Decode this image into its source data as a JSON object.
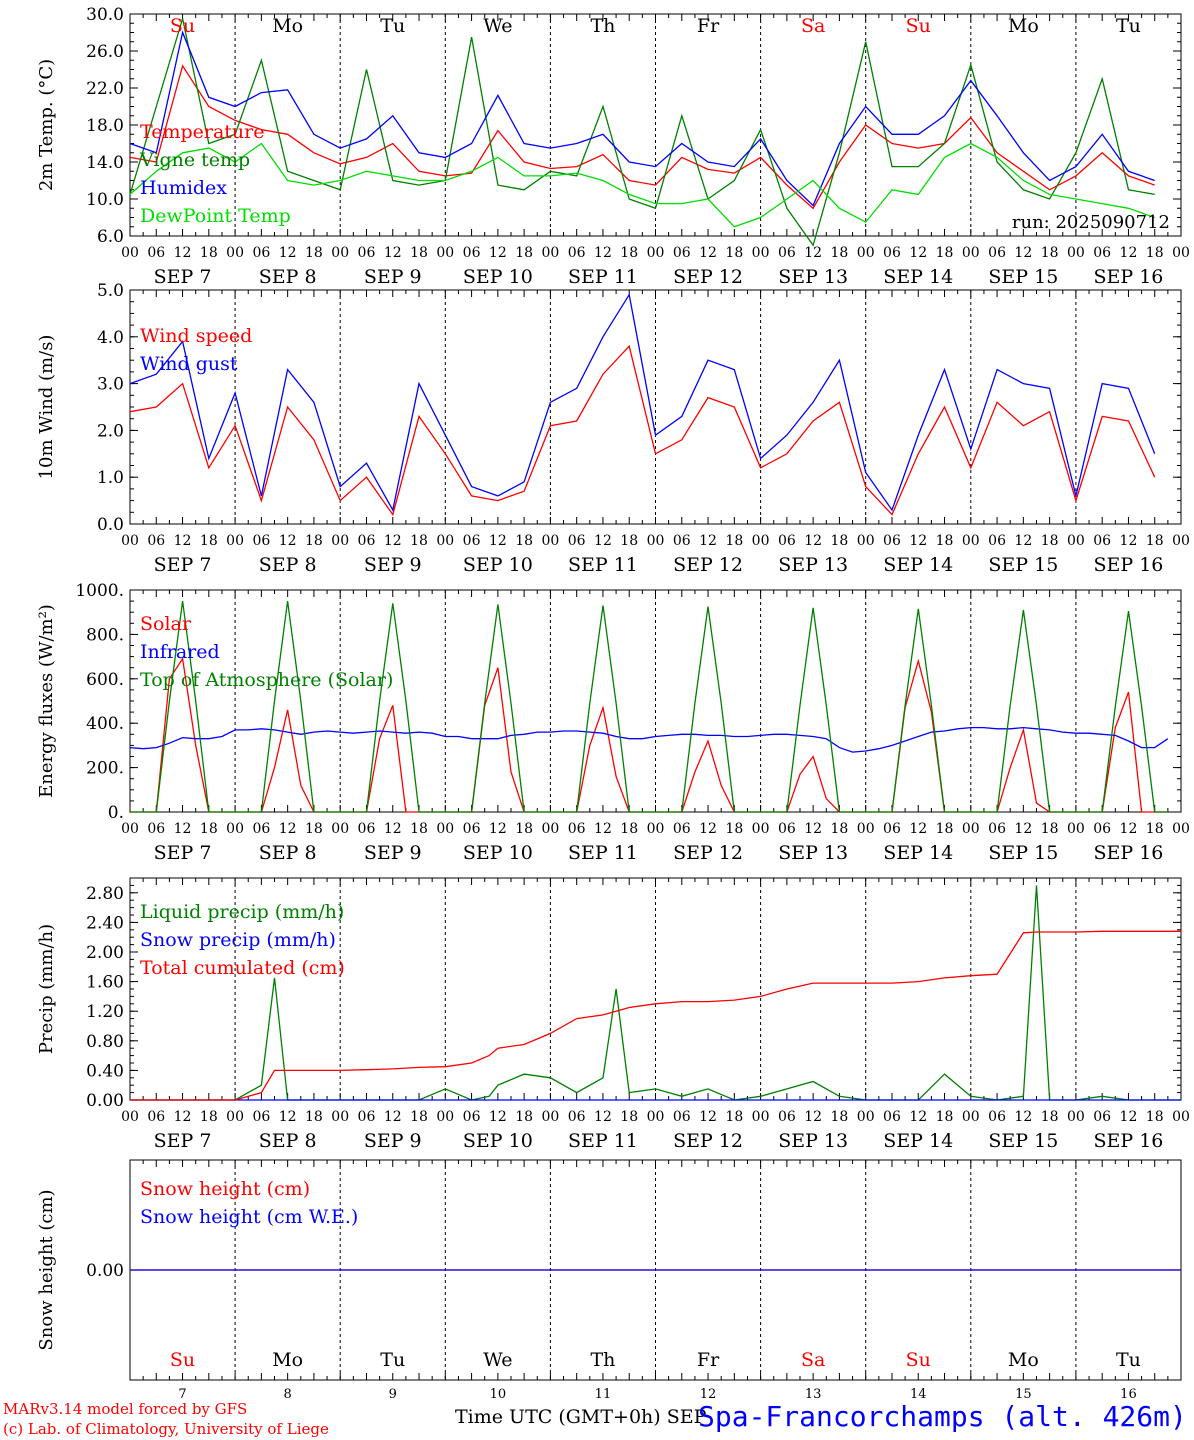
{
  "days": [
    {
      "abbr": "Su",
      "num": "7",
      "date": "SEP  7",
      "weekend": true
    },
    {
      "abbr": "Mo",
      "num": "8",
      "date": "SEP  8",
      "weekend": false
    },
    {
      "abbr": "Tu",
      "num": "9",
      "date": "SEP  9",
      "weekend": false
    },
    {
      "abbr": "We",
      "num": "10",
      "date": "SEP 10",
      "weekend": false
    },
    {
      "abbr": "Th",
      "num": "11",
      "date": "SEP 11",
      "weekend": false
    },
    {
      "abbr": "Fr",
      "num": "12",
      "date": "SEP 12",
      "weekend": false
    },
    {
      "abbr": "Sa",
      "num": "13",
      "date": "SEP 13",
      "weekend": true
    },
    {
      "abbr": "Su",
      "num": "14",
      "date": "SEP 14",
      "weekend": true
    },
    {
      "abbr": "Mo",
      "num": "15",
      "date": "SEP 15",
      "weekend": false
    },
    {
      "abbr": "Tu",
      "num": "16",
      "date": "SEP 16",
      "weekend": false
    }
  ],
  "hour_ticks": [
    "00",
    "06",
    "12",
    "18"
  ],
  "footer": {
    "credit1": "MARv3.14 model forced by GFS",
    "credit2": "(c) Lab. of Climatology, University of Liege",
    "xlabel": "Time UTC (GMT+0h) SEP",
    "station": "Spa-Francorchamps (alt. 426m)"
  },
  "colors": {
    "red": "#ff0000",
    "blue": "#0000ff",
    "green": "#008000",
    "lightgreen": "#00dd00"
  },
  "chart_data": [
    {
      "type": "line",
      "ylabel": "2m Temp. (°C)",
      "ylim": [
        6,
        30
      ],
      "yticks": [
        "6.0",
        "10.0",
        "14.0",
        "18.0",
        "22.0",
        "26.0",
        "30.0"
      ],
      "note": "run: 2025090712",
      "x": [
        0,
        6,
        12,
        18,
        24,
        30,
        36,
        42,
        48,
        54,
        60,
        66,
        72,
        78,
        84,
        90,
        96,
        102,
        108,
        114,
        120,
        126,
        132,
        138,
        144,
        150,
        156,
        162,
        168,
        174,
        180,
        186,
        192,
        198,
        204,
        210,
        216,
        222,
        228,
        234
      ],
      "series": [
        {
          "name": "Temperature",
          "color": "red",
          "values": [
            14.5,
            14.0,
            24.4,
            20.0,
            18.5,
            17.5,
            17.0,
            15.0,
            13.8,
            14.5,
            16.0,
            13.0,
            12.5,
            12.8,
            17.4,
            14.0,
            13.3,
            13.5,
            14.8,
            12.0,
            11.5,
            14.5,
            13.2,
            12.8,
            14.5,
            11.5,
            9.0,
            14.0,
            18.0,
            16.0,
            15.5,
            16.0,
            18.8,
            15.0,
            13.0,
            11.0,
            12.5,
            15.0,
            12.5,
            11.5
          ]
        },
        {
          "name": "Vigne temp",
          "color": "green",
          "values": [
            10.5,
            20.0,
            29.5,
            16.0,
            17.0,
            25.0,
            13.0,
            12.0,
            11.0,
            24.0,
            12.0,
            11.5,
            12.0,
            27.5,
            11.5,
            11.0,
            13.0,
            12.5,
            20.0,
            10.0,
            9.0,
            19.0,
            10.0,
            12.0,
            17.5,
            9.0,
            5.0,
            15.0,
            27.0,
            13.5,
            13.5,
            16.0,
            24.5,
            14.0,
            11.0,
            10.0,
            15.0,
            23.0,
            11.0,
            10.5
          ]
        },
        {
          "name": "Humidex",
          "color": "blue",
          "values": [
            16.0,
            15.0,
            28.0,
            21.0,
            20.0,
            21.5,
            21.8,
            17.0,
            15.5,
            16.5,
            19.0,
            15.0,
            14.5,
            16.0,
            21.2,
            16.0,
            15.5,
            16.0,
            17.0,
            14.0,
            13.5,
            16.0,
            14.0,
            13.5,
            16.5,
            12.0,
            9.3,
            16.0,
            20.0,
            17.0,
            17.0,
            19.0,
            22.8,
            19.0,
            15.0,
            12.0,
            13.5,
            17.0,
            13.0,
            12.0
          ]
        },
        {
          "name": "DewPoint Temp",
          "color": "lightgreen",
          "values": [
            10.5,
            13.0,
            15.0,
            15.5,
            14.0,
            16.0,
            12.0,
            11.5,
            12.0,
            13.0,
            12.5,
            12.0,
            12.0,
            13.0,
            14.5,
            12.5,
            12.5,
            12.8,
            12.0,
            10.5,
            9.5,
            9.5,
            10.0,
            7.0,
            8.0,
            10.0,
            12.0,
            9.0,
            7.5,
            11.0,
            10.5,
            14.5,
            16.0,
            14.5,
            12.0,
            10.5,
            10.0,
            9.5,
            9.0,
            8.0
          ]
        }
      ]
    },
    {
      "type": "line",
      "ylabel": "10m Wind (m/s)",
      "ylim": [
        0,
        5
      ],
      "yticks": [
        "0.0",
        "1.0",
        "2.0",
        "3.0",
        "4.0",
        "5.0"
      ],
      "x": [
        0,
        6,
        12,
        18,
        24,
        30,
        36,
        42,
        48,
        54,
        60,
        66,
        72,
        78,
        84,
        90,
        96,
        102,
        108,
        114,
        120,
        126,
        132,
        138,
        144,
        150,
        156,
        162,
        168,
        174,
        180,
        186,
        192,
        198,
        204,
        210,
        216,
        222,
        228,
        234
      ],
      "series": [
        {
          "name": "Wind speed",
          "color": "red",
          "values": [
            2.4,
            2.5,
            3.0,
            1.2,
            2.1,
            0.5,
            2.5,
            1.8,
            0.5,
            1.0,
            0.2,
            2.3,
            1.5,
            0.6,
            0.5,
            0.7,
            2.1,
            2.2,
            3.2,
            3.8,
            1.5,
            1.8,
            2.7,
            2.5,
            1.2,
            1.5,
            2.2,
            2.6,
            0.8,
            0.2,
            1.5,
            2.5,
            1.2,
            2.6,
            2.1,
            2.4,
            0.5,
            2.3,
            2.2,
            1.0
          ]
        },
        {
          "name": "Wind gust",
          "color": "blue",
          "values": [
            3.0,
            3.2,
            3.9,
            1.4,
            2.8,
            0.6,
            3.3,
            2.6,
            0.8,
            1.3,
            0.3,
            3.0,
            1.9,
            0.8,
            0.6,
            0.9,
            2.6,
            2.9,
            4.0,
            4.9,
            1.9,
            2.3,
            3.5,
            3.3,
            1.4,
            1.9,
            2.6,
            3.5,
            1.1,
            0.3,
            1.9,
            3.3,
            1.6,
            3.3,
            3.0,
            2.9,
            0.6,
            3.0,
            2.9,
            1.5
          ]
        }
      ]
    },
    {
      "type": "line",
      "ylabel": "Energy fluxes (W/m²)",
      "ylim": [
        0,
        1000
      ],
      "yticks": [
        "0.",
        "200.",
        "400.",
        "600.",
        "800.",
        "1000."
      ],
      "x": [
        0,
        3,
        6,
        9,
        12,
        15,
        18,
        21,
        24,
        27,
        30,
        33,
        36,
        39,
        42,
        45,
        48,
        51,
        54,
        57,
        60,
        63,
        66,
        69,
        72,
        75,
        78,
        81,
        84,
        87,
        90,
        93,
        96,
        99,
        102,
        105,
        108,
        111,
        114,
        117,
        120,
        123,
        126,
        129,
        132,
        135,
        138,
        141,
        144,
        147,
        150,
        153,
        156,
        159,
        162,
        165,
        168,
        171,
        174,
        177,
        180,
        183,
        186,
        189,
        192,
        195,
        198,
        201,
        204,
        207,
        210,
        213,
        216,
        219,
        222,
        225,
        228,
        231,
        234,
        237
      ],
      "series": [
        {
          "name": "Solar",
          "color": "red",
          "values": [
            0,
            0,
            0,
            600,
            690,
            300,
            0,
            0,
            0,
            0,
            0,
            200,
            460,
            120,
            0,
            0,
            0,
            0,
            0,
            330,
            480,
            0,
            0,
            0,
            0,
            0,
            0,
            480,
            650,
            180,
            0,
            0,
            0,
            0,
            0,
            300,
            470,
            160,
            0,
            0,
            0,
            0,
            0,
            180,
            320,
            120,
            0,
            0,
            0,
            0,
            0,
            170,
            250,
            60,
            0,
            0,
            0,
            0,
            0,
            470,
            680,
            450,
            0,
            0,
            0,
            0,
            0,
            200,
            370,
            40,
            0,
            0,
            0,
            0,
            0,
            380,
            540,
            0,
            0,
            0
          ]
        },
        {
          "name": "Infrared",
          "color": "blue",
          "values": [
            290,
            285,
            290,
            310,
            335,
            330,
            330,
            340,
            370,
            370,
            375,
            370,
            360,
            350,
            360,
            365,
            360,
            355,
            360,
            365,
            360,
            355,
            360,
            355,
            340,
            340,
            330,
            330,
            330,
            345,
            350,
            360,
            360,
            365,
            365,
            360,
            355,
            340,
            330,
            330,
            340,
            345,
            350,
            350,
            345,
            345,
            340,
            340,
            345,
            350,
            350,
            345,
            340,
            330,
            290,
            270,
            275,
            285,
            300,
            320,
            340,
            360,
            365,
            375,
            380,
            380,
            375,
            375,
            380,
            375,
            370,
            360,
            355,
            355,
            350,
            345,
            320,
            290,
            290,
            330
          ]
        },
        {
          "name": "Top of Atmosphere (Solar)",
          "color": "green",
          "values": [
            0,
            0,
            0,
            500,
            950,
            500,
            0,
            0,
            0,
            0,
            0,
            500,
            950,
            500,
            0,
            0,
            0,
            0,
            0,
            500,
            940,
            500,
            0,
            0,
            0,
            0,
            0,
            490,
            935,
            490,
            0,
            0,
            0,
            0,
            0,
            490,
            930,
            490,
            0,
            0,
            0,
            0,
            0,
            490,
            925,
            490,
            0,
            0,
            0,
            0,
            0,
            480,
            920,
            480,
            0,
            0,
            0,
            0,
            0,
            480,
            915,
            480,
            0,
            0,
            0,
            0,
            0,
            480,
            910,
            480,
            0,
            0,
            0,
            0,
            0,
            475,
            905,
            475,
            0,
            0
          ]
        }
      ]
    },
    {
      "type": "line",
      "ylabel": "Precip (mm/h)",
      "ylim": [
        0,
        3.0
      ],
      "yticks": [
        "0.00",
        "0.40",
        "0.80",
        "1.20",
        "1.60",
        "2.00",
        "2.40",
        "2.80"
      ],
      "x": [
        0,
        6,
        12,
        18,
        24,
        30,
        33,
        36,
        42,
        48,
        54,
        60,
        66,
        72,
        78,
        82,
        84,
        90,
        96,
        102,
        108,
        111,
        114,
        120,
        126,
        132,
        138,
        144,
        150,
        156,
        162,
        168,
        174,
        180,
        186,
        192,
        198,
        204,
        207,
        210,
        216,
        222,
        228,
        234,
        240
      ],
      "series": [
        {
          "name": "Liquid precip (mm/h)",
          "color": "green",
          "values": [
            0,
            0,
            0,
            0,
            0,
            0.2,
            1.65,
            0,
            0,
            0,
            0,
            0,
            0,
            0.15,
            0,
            0.05,
            0.2,
            0.35,
            0.3,
            0.1,
            0.3,
            1.5,
            0.1,
            0.15,
            0.05,
            0.15,
            0,
            0.05,
            0.15,
            0.25,
            0.05,
            0,
            0,
            0,
            0.35,
            0.05,
            0,
            0.05,
            2.9,
            0,
            0,
            0.05,
            0,
            0,
            0
          ]
        },
        {
          "name": "Snow precip (mm/h)",
          "color": "blue",
          "values": [
            0,
            0,
            0,
            0,
            0,
            0,
            0,
            0,
            0,
            0,
            0,
            0,
            0,
            0,
            0,
            0,
            0,
            0,
            0,
            0,
            0,
            0,
            0,
            0,
            0,
            0,
            0,
            0,
            0,
            0,
            0,
            0,
            0,
            0,
            0,
            0,
            0,
            0,
            0,
            0,
            0,
            0,
            0,
            0,
            0
          ]
        },
        {
          "name": "Total cumulated (cm)",
          "color": "red",
          "values": [
            0,
            0,
            0,
            0,
            0,
            0.1,
            0.4,
            0.4,
            0.4,
            0.4,
            0.41,
            0.42,
            0.44,
            0.45,
            0.5,
            0.6,
            0.7,
            0.75,
            0.9,
            1.1,
            1.15,
            1.2,
            1.25,
            1.3,
            1.33,
            1.33,
            1.35,
            1.4,
            1.5,
            1.58,
            1.58,
            1.58,
            1.58,
            1.6,
            1.65,
            1.68,
            1.7,
            2.26,
            2.27,
            2.27,
            2.27,
            2.28,
            2.28,
            2.28,
            2.28
          ]
        }
      ]
    },
    {
      "type": "line",
      "ylabel": "Snow height (cm)",
      "ylim": [
        -1,
        1
      ],
      "yticks": [
        "0.00"
      ],
      "x": [
        0,
        240
      ],
      "series": [
        {
          "name": "Snow height (cm)",
          "color": "red",
          "values": [
            0,
            0
          ]
        },
        {
          "name": "Snow height (cm W.E.)",
          "color": "blue",
          "values": [
            0,
            0
          ]
        }
      ]
    }
  ]
}
